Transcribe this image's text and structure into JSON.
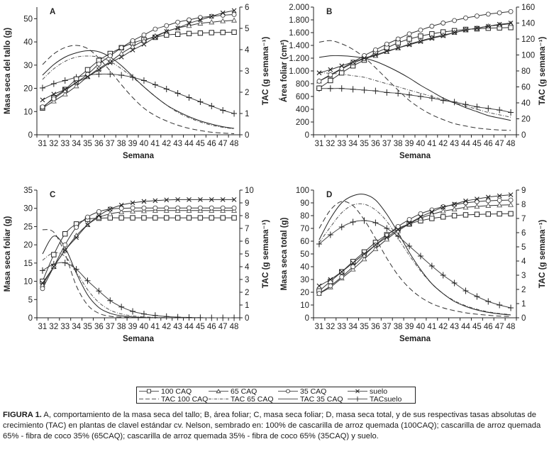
{
  "figure": {
    "caption_label": "FIGURA 1.",
    "caption_text": " A, comportamiento de la masa seca del tallo; B, área foliar; C, masa seca foliar; D, masa seca total, y de sus respectivas tasas absolutas de crecimiento (TAC) en plantas de clavel estándar cv. Nelson, sembrado en: 100% de cascarilla de arroz quemada (100CAQ); cascarilla de arroz quemada 65% - fibra de coco 35% (65CAQ); cascarilla de arroz quemada 35% - fibra de coco 65% (35CAQ) y suelo."
  },
  "legend": {
    "entries": [
      {
        "label": "100 CAQ",
        "style": "square-marker"
      },
      {
        "label": "65 CAQ",
        "style": "triangle-marker"
      },
      {
        "label": "35 CAQ",
        "style": "circle-marker"
      },
      {
        "label": "suelo",
        "style": "x-marker"
      },
      {
        "label": "TAC 100 CAQ",
        "style": "dashed"
      },
      {
        "label": "TAC 65 CAQ",
        "style": "dash-dot"
      },
      {
        "label": "TAC 35 CAQ",
        "style": "solid"
      },
      {
        "label": "TACsuelo",
        "style": "plus-marker"
      }
    ]
  },
  "chart_data": [
    {
      "panel": "A",
      "type": "line",
      "xlabel": "Semana",
      "ylabel": "Masa seca del tallo (g)",
      "y2label": "TAC (g semana⁻¹)",
      "x": [
        31,
        32,
        33,
        34,
        35,
        36,
        37,
        38,
        39,
        40,
        41,
        42,
        43,
        44,
        45,
        46,
        47,
        48
      ],
      "ylim": [
        0,
        55
      ],
      "yticks": [
        0,
        10,
        20,
        30,
        40,
        50
      ],
      "ytick_labels": [
        "0",
        "10",
        "20",
        "30",
        "40",
        "50"
      ],
      "y2lim": [
        0,
        6
      ],
      "y2ticks": [
        0,
        1,
        2,
        3,
        4,
        5,
        6
      ],
      "y2tick_labels": [
        "0",
        "1",
        "2",
        "3",
        "4",
        "5",
        "6"
      ],
      "series": [
        {
          "name": "100 CAQ",
          "axis": "left",
          "values": [
            11.5,
            16,
            19.5,
            24,
            28,
            32,
            35,
            37.5,
            39.5,
            41,
            42,
            43,
            43.3,
            43.6,
            43.8,
            44,
            44.1,
            44.2
          ]
        },
        {
          "name": "65 CAQ",
          "axis": "left",
          "values": [
            11.5,
            14.5,
            17.5,
            21,
            25,
            28.5,
            31.5,
            35,
            38,
            40.5,
            42.5,
            44.5,
            46,
            47,
            48,
            48.5,
            49,
            49.3
          ]
        },
        {
          "name": "35 CAQ",
          "axis": "left",
          "values": [
            12,
            15.5,
            19,
            22.5,
            26,
            30.5,
            34,
            37.5,
            40.5,
            43,
            45.5,
            47,
            48.5,
            49.5,
            50.5,
            51,
            51.5,
            51.8
          ]
        },
        {
          "name": "suelo",
          "axis": "left",
          "values": [
            15,
            17.5,
            19.5,
            22.5,
            25,
            28,
            31,
            33.5,
            36.5,
            39,
            42,
            44.5,
            46,
            48,
            49.5,
            51,
            52.5,
            53.5
          ]
        },
        {
          "name": "TAC 100 CAQ",
          "axis": "right",
          "values": [
            3.3,
            3.8,
            4.1,
            4.2,
            4.05,
            3.6,
            3.0,
            2.35,
            1.75,
            1.25,
            0.9,
            0.65,
            0.45,
            0.3,
            0.2,
            0.12,
            0.08,
            0.05
          ]
        },
        {
          "name": "TAC 65 CAQ",
          "axis": "right",
          "values": [
            2.6,
            3.1,
            3.45,
            3.65,
            3.7,
            3.65,
            3.45,
            3.1,
            2.7,
            2.25,
            1.8,
            1.4,
            1.05,
            0.8,
            0.6,
            0.45,
            0.35,
            0.28
          ]
        },
        {
          "name": "TAC 35 CAQ",
          "axis": "right",
          "values": [
            2.8,
            3.3,
            3.65,
            3.85,
            3.95,
            3.9,
            3.65,
            3.25,
            2.75,
            2.25,
            1.8,
            1.4,
            1.1,
            0.85,
            0.65,
            0.5,
            0.38,
            0.3
          ]
        },
        {
          "name": "TACsuelo",
          "axis": "right",
          "values": [
            2.2,
            2.4,
            2.55,
            2.7,
            2.8,
            2.85,
            2.85,
            2.8,
            2.7,
            2.55,
            2.35,
            2.15,
            1.95,
            1.75,
            1.55,
            1.35,
            1.15,
            1.0
          ]
        }
      ]
    },
    {
      "panel": "B",
      "type": "line",
      "xlabel": "Semana",
      "ylabel": "Área foliar (cm²)",
      "y2label": "TAC (g semana⁻¹)",
      "x": [
        31,
        32,
        33,
        34,
        35,
        36,
        37,
        38,
        39,
        40,
        41,
        42,
        43,
        44,
        45,
        46,
        47,
        48
      ],
      "ylim": [
        0,
        2000
      ],
      "yticks": [
        0,
        200,
        400,
        600,
        800,
        1000,
        1200,
        1400,
        1600,
        1800,
        2000
      ],
      "ytick_labels": [
        "0",
        "200",
        "400",
        "600",
        "800",
        "1.000",
        "1.200",
        "1.400",
        "1.600",
        "1.800",
        "2.000"
      ],
      "y2lim": [
        0,
        160
      ],
      "y2ticks": [
        0,
        20,
        40,
        60,
        80,
        100,
        120,
        140,
        160
      ],
      "y2tick_labels": [
        "0",
        "20",
        "40",
        "60",
        "80",
        "100",
        "120",
        "140",
        "160"
      ],
      "series": [
        {
          "name": "100 CAQ",
          "axis": "left",
          "values": [
            730,
            850,
            970,
            1080,
            1170,
            1280,
            1360,
            1440,
            1500,
            1545,
            1580,
            1610,
            1630,
            1650,
            1660,
            1670,
            1675,
            1680
          ]
        },
        {
          "name": "65 CAQ",
          "axis": "left",
          "values": [
            840,
            930,
            1030,
            1120,
            1190,
            1240,
            1300,
            1360,
            1420,
            1470,
            1520,
            1560,
            1600,
            1640,
            1670,
            1700,
            1720,
            1740
          ]
        },
        {
          "name": "35 CAQ",
          "axis": "left",
          "values": [
            840,
            940,
            1040,
            1140,
            1240,
            1330,
            1420,
            1500,
            1580,
            1640,
            1700,
            1750,
            1790,
            1830,
            1860,
            1890,
            1910,
            1930
          ]
        },
        {
          "name": "suelo",
          "axis": "left",
          "values": [
            970,
            1020,
            1080,
            1140,
            1200,
            1250,
            1310,
            1360,
            1410,
            1460,
            1510,
            1550,
            1600,
            1640,
            1670,
            1700,
            1730,
            1750
          ]
        },
        {
          "name": "TAC 100 CAQ",
          "axis": "right",
          "values": [
            116,
            118,
            114,
            107,
            97,
            84,
            70,
            56,
            43,
            33,
            25,
            19,
            14,
            11,
            8.5,
            7,
            6,
            5.5
          ]
        },
        {
          "name": "TAC 65 CAQ",
          "axis": "right",
          "values": [
            78,
            77,
            76,
            74,
            72,
            68,
            64,
            60,
            56,
            52,
            48,
            44,
            40,
            36,
            32,
            28,
            25,
            22
          ]
        },
        {
          "name": "TAC 35 CAQ",
          "axis": "right",
          "values": [
            97,
            99,
            99,
            98,
            96,
            92,
            86,
            79,
            71,
            62,
            54,
            46,
            40,
            34,
            29,
            24,
            21,
            18
          ]
        },
        {
          "name": "TACsuelo",
          "axis": "right",
          "values": [
            58,
            58,
            58,
            57,
            56,
            55,
            53,
            52,
            50,
            48,
            46,
            43,
            41,
            38,
            35,
            33,
            31,
            28
          ]
        }
      ]
    },
    {
      "panel": "C",
      "type": "line",
      "xlabel": "Semana",
      "ylabel": "Masa seca foliar (g)",
      "y2label": "TAC (g semana⁻¹)",
      "x": [
        31,
        32,
        33,
        34,
        35,
        36,
        37,
        38,
        39,
        40,
        41,
        42,
        43,
        44,
        45,
        46,
        47,
        48
      ],
      "ylim": [
        0,
        35
      ],
      "yticks": [
        0,
        5,
        10,
        15,
        20,
        25,
        30,
        35
      ],
      "ytick_labels": [
        "0",
        "5",
        "10",
        "15",
        "20",
        "25",
        "30",
        "35"
      ],
      "y2lim": [
        0,
        10
      ],
      "y2ticks": [
        0,
        1,
        2,
        3,
        4,
        5,
        6,
        7,
        8,
        9,
        10
      ],
      "y2tick_labels": [
        "0",
        "1",
        "2",
        "3",
        "4",
        "5",
        "6",
        "7",
        "8",
        "9",
        "10"
      ],
      "series": [
        {
          "name": "100 CAQ",
          "axis": "left",
          "values": [
            10,
            17.3,
            23,
            25.7,
            27,
            27.3,
            27.4,
            27.4,
            27.4,
            27.4,
            27.4,
            27.4,
            27.4,
            27.4,
            27.4,
            27.4,
            27.4,
            27.4
          ]
        },
        {
          "name": "65 CAQ",
          "axis": "left",
          "values": [
            9,
            14,
            18.5,
            22.5,
            25.5,
            27.5,
            28.5,
            29,
            29.2,
            29.3,
            29.4,
            29.4,
            29.4,
            29.4,
            29.4,
            29.4,
            29.4,
            29.4
          ]
        },
        {
          "name": "35 CAQ",
          "axis": "left",
          "values": [
            8,
            14,
            20,
            24.8,
            27.6,
            29.1,
            29.8,
            30,
            30.1,
            30.1,
            30.1,
            30.1,
            30.1,
            30.1,
            30.1,
            30.1,
            30.1,
            30.1
          ]
        },
        {
          "name": "suelo",
          "axis": "left",
          "values": [
            9.5,
            14,
            18.5,
            22,
            25.5,
            28,
            29.8,
            30.9,
            31.5,
            31.9,
            32.1,
            32.3,
            32.4,
            32.4,
            32.4,
            32.4,
            32.4,
            32.4
          ]
        },
        {
          "name": "TAC 100 CAQ",
          "axis": "right",
          "values": [
            6.9,
            6.7,
            5.0,
            2.5,
            1.0,
            0.35,
            0.12,
            0.05,
            0.02,
            0.01,
            0,
            0,
            0,
            0,
            0,
            0,
            0,
            0
          ]
        },
        {
          "name": "TAC 65 CAQ",
          "axis": "right",
          "values": [
            4.5,
            5.1,
            4.8,
            3.6,
            2.2,
            1.2,
            0.6,
            0.3,
            0.15,
            0.07,
            0.03,
            0.01,
            0,
            0,
            0,
            0,
            0,
            0
          ]
        },
        {
          "name": "TAC 35 CAQ",
          "axis": "right",
          "values": [
            5.0,
            6.4,
            5.5,
            3.5,
            1.8,
            0.8,
            0.35,
            0.15,
            0.06,
            0.02,
            0.01,
            0,
            0,
            0,
            0,
            0,
            0,
            0
          ]
        },
        {
          "name": "TACsuelo",
          "axis": "right",
          "values": [
            3.7,
            4.2,
            4.3,
            3.8,
            2.9,
            2.1,
            1.35,
            0.85,
            0.5,
            0.3,
            0.18,
            0.1,
            0.05,
            0.03,
            0.01,
            0,
            0,
            0
          ]
        }
      ]
    },
    {
      "panel": "D",
      "type": "line",
      "xlabel": "Semana",
      "ylabel": "Masa seca total (g)",
      "y2label": "TAC (g semana⁻¹)",
      "x": [
        31,
        32,
        33,
        34,
        35,
        36,
        37,
        38,
        39,
        40,
        41,
        42,
        43,
        44,
        45,
        46,
        47,
        48
      ],
      "ylim": [
        0,
        100
      ],
      "yticks": [
        0,
        10,
        20,
        30,
        40,
        50,
        60,
        70,
        80,
        90,
        100
      ],
      "ytick_labels": [
        "0",
        "10",
        "20",
        "30",
        "40",
        "50",
        "60",
        "70",
        "80",
        "90",
        "100"
      ],
      "y2lim": [
        0,
        9
      ],
      "y2ticks": [
        0,
        1,
        2,
        3,
        4,
        5,
        6,
        7,
        8,
        9
      ],
      "y2tick_labels": [
        "0",
        "1",
        "2",
        "3",
        "4",
        "5",
        "6",
        "7",
        "8",
        "9"
      ],
      "series": [
        {
          "name": "100 CAQ",
          "axis": "left",
          "values": [
            21,
            28.5,
            36,
            44,
            51.5,
            59,
            65,
            70,
            73.5,
            76,
            77.8,
            79,
            80,
            80.6,
            81,
            81.2,
            81.4,
            81.5
          ]
        },
        {
          "name": "65 CAQ",
          "axis": "left",
          "values": [
            19,
            24,
            31,
            38,
            46,
            54,
            61.5,
            68,
            73.5,
            78,
            81,
            83.5,
            85,
            86.5,
            87.2,
            87.8,
            88.2,
            88.5
          ]
        },
        {
          "name": "35 CAQ",
          "axis": "left",
          "values": [
            19,
            25,
            32,
            40,
            49,
            57,
            64.5,
            71.5,
            77,
            81.5,
            84.5,
            87,
            88.5,
            90,
            91,
            91.6,
            92,
            92.2
          ]
        },
        {
          "name": "suelo",
          "axis": "left",
          "values": [
            25,
            30,
            36,
            43,
            50,
            57,
            63,
            69,
            74,
            79,
            83,
            86.5,
            89,
            91.5,
            93,
            94.5,
            95.5,
            96.3
          ]
        },
        {
          "name": "TAC 100 CAQ",
          "axis": "right",
          "values": [
            6.3,
            7.6,
            8.2,
            7.9,
            6.9,
            5.6,
            4.2,
            3.0,
            2.1,
            1.45,
            1.0,
            0.7,
            0.5,
            0.35,
            0.25,
            0.18,
            0.12,
            0.1
          ]
        },
        {
          "name": "TAC 65 CAQ",
          "axis": "right",
          "values": [
            5.3,
            6.4,
            7.4,
            7.95,
            8.0,
            7.6,
            6.8,
            5.6,
            4.4,
            3.3,
            2.4,
            1.7,
            1.2,
            0.85,
            0.6,
            0.42,
            0.3,
            0.22
          ]
        },
        {
          "name": "TAC 35 CAQ",
          "axis": "right",
          "values": [
            5.5,
            7.0,
            8.1,
            8.6,
            8.7,
            8.3,
            7.3,
            6.0,
            4.6,
            3.4,
            2.4,
            1.7,
            1.15,
            0.8,
            0.55,
            0.38,
            0.27,
            0.2
          ]
        },
        {
          "name": "TACsuelo",
          "axis": "right",
          "values": [
            5.2,
            5.85,
            6.4,
            6.75,
            6.85,
            6.7,
            6.3,
            5.75,
            5.05,
            4.35,
            3.65,
            3.0,
            2.45,
            1.9,
            1.5,
            1.15,
            0.9,
            0.7
          ]
        }
      ]
    }
  ]
}
